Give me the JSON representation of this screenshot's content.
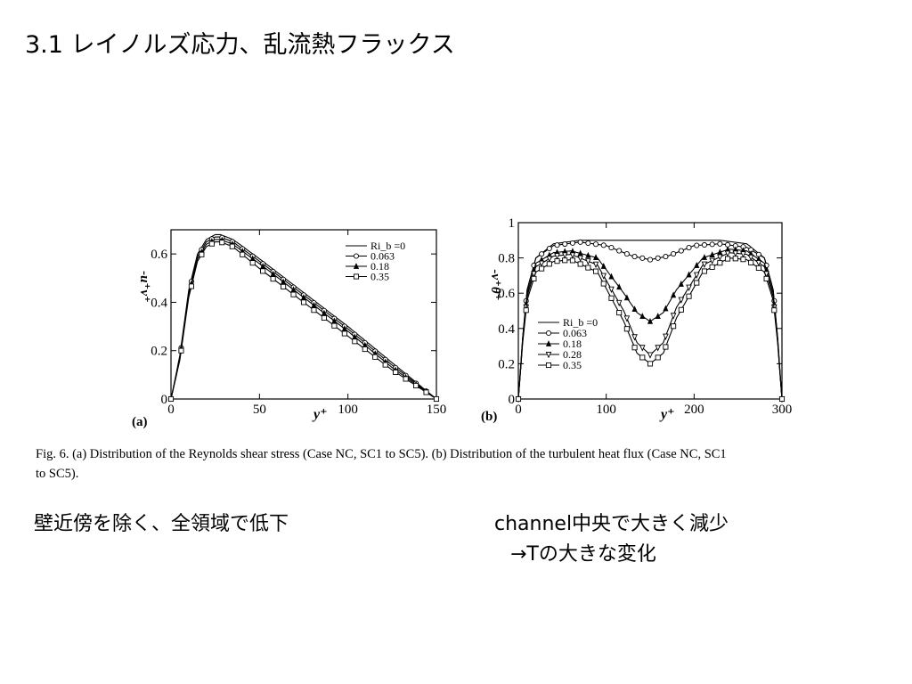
{
  "slide": {
    "title": "3.1 レイノルズ応力、乱流熱フラックス",
    "note_left": "壁近傍を除く、全領域で低下",
    "note_right_line1": "channel中央で大きく減少",
    "note_right_line2": "→Tの大きな変化"
  },
  "figure": {
    "caption_line1": "Fig.  6. (a) Distribution of the Reynolds shear stress (Case NC, SC1 to SC5). (b) Distribution of the turbulent heat flux (Case NC, SC1",
    "caption_line2": "to SC5)."
  },
  "chart_data": [
    {
      "type": "line",
      "panel_label": "(a)",
      "xlabel": "y⁺",
      "ylabel": "-u⁺v⁺",
      "xlim": [
        0,
        150
      ],
      "ylim": [
        0,
        0.7
      ],
      "xticks": [
        "0",
        "50",
        "100",
        "150"
      ],
      "yticks": [
        "0",
        "0.2",
        "0.4",
        "0.6"
      ],
      "legend_position": "top-right",
      "series": [
        {
          "name": "Ri_b =0",
          "marker": "none",
          "x": [
            0,
            5,
            10,
            15,
            20,
            25,
            28,
            35,
            50,
            75,
            100,
            125,
            150
          ],
          "y": [
            0,
            0.18,
            0.45,
            0.6,
            0.66,
            0.68,
            0.68,
            0.66,
            0.58,
            0.44,
            0.3,
            0.15,
            0
          ]
        },
        {
          "name": "0.063",
          "marker": "circle",
          "x": [
            0,
            5,
            10,
            15,
            20,
            25,
            28,
            35,
            50,
            75,
            100,
            125,
            150
          ],
          "y": [
            0,
            0.17,
            0.44,
            0.59,
            0.65,
            0.67,
            0.67,
            0.65,
            0.57,
            0.43,
            0.29,
            0.14,
            0
          ]
        },
        {
          "name": "0.18",
          "marker": "triangle",
          "x": [
            0,
            5,
            10,
            15,
            20,
            25,
            28,
            35,
            50,
            75,
            100,
            125,
            150
          ],
          "y": [
            0,
            0.17,
            0.43,
            0.58,
            0.64,
            0.66,
            0.66,
            0.64,
            0.56,
            0.42,
            0.28,
            0.13,
            0
          ]
        },
        {
          "name": "0.35",
          "marker": "square",
          "x": [
            0,
            5,
            10,
            15,
            20,
            25,
            28,
            35,
            50,
            75,
            100,
            125,
            150
          ],
          "y": [
            0,
            0.16,
            0.42,
            0.57,
            0.63,
            0.65,
            0.65,
            0.63,
            0.54,
            0.4,
            0.26,
            0.12,
            0
          ]
        }
      ]
    },
    {
      "type": "line",
      "panel_label": "(b)",
      "xlabel": "y⁺",
      "ylabel": "-v⁺θ⁺",
      "xlim": [
        0,
        300
      ],
      "ylim": [
        0,
        1
      ],
      "xticks": [
        "0",
        "100",
        "200",
        "300"
      ],
      "yticks": [
        "0",
        "0.2",
        "0.4",
        "0.6",
        "0.8",
        "1"
      ],
      "legend_position": "left",
      "series": [
        {
          "name": "Ri_b =0",
          "marker": "none",
          "x": [
            0,
            5,
            10,
            20,
            40,
            70,
            100,
            150,
            200,
            230,
            260,
            280,
            290,
            295,
            300
          ],
          "y": [
            0,
            0.35,
            0.62,
            0.8,
            0.88,
            0.9,
            0.9,
            0.9,
            0.9,
            0.9,
            0.88,
            0.8,
            0.62,
            0.35,
            0
          ]
        },
        {
          "name": "0.063",
          "marker": "circle",
          "x": [
            0,
            5,
            10,
            20,
            40,
            70,
            100,
            130,
            150,
            170,
            200,
            230,
            260,
            280,
            290,
            295,
            300
          ],
          "y": [
            0,
            0.35,
            0.62,
            0.8,
            0.87,
            0.89,
            0.87,
            0.81,
            0.79,
            0.81,
            0.87,
            0.88,
            0.86,
            0.8,
            0.62,
            0.35,
            0
          ]
        },
        {
          "name": "0.18",
          "marker": "triangle",
          "x": [
            0,
            5,
            10,
            20,
            40,
            60,
            90,
            120,
            135,
            150,
            165,
            180,
            210,
            240,
            260,
            280,
            290,
            295,
            300
          ],
          "y": [
            0,
            0.34,
            0.6,
            0.77,
            0.83,
            0.84,
            0.8,
            0.6,
            0.49,
            0.44,
            0.49,
            0.62,
            0.8,
            0.85,
            0.84,
            0.77,
            0.6,
            0.34,
            0
          ]
        },
        {
          "name": "0.28",
          "marker": "triangle-down",
          "x": [
            0,
            5,
            10,
            20,
            40,
            60,
            90,
            120,
            135,
            150,
            165,
            180,
            210,
            240,
            260,
            280,
            290,
            295,
            300
          ],
          "y": [
            0,
            0.33,
            0.58,
            0.75,
            0.81,
            0.82,
            0.76,
            0.5,
            0.32,
            0.25,
            0.32,
            0.52,
            0.76,
            0.83,
            0.82,
            0.75,
            0.58,
            0.33,
            0
          ]
        },
        {
          "name": "0.35",
          "marker": "square",
          "x": [
            0,
            5,
            10,
            20,
            40,
            60,
            90,
            120,
            135,
            150,
            165,
            180,
            210,
            240,
            260,
            280,
            290,
            295,
            300
          ],
          "y": [
            0,
            0.32,
            0.56,
            0.72,
            0.78,
            0.79,
            0.72,
            0.44,
            0.26,
            0.2,
            0.26,
            0.46,
            0.72,
            0.8,
            0.79,
            0.72,
            0.56,
            0.32,
            0
          ]
        }
      ]
    }
  ]
}
